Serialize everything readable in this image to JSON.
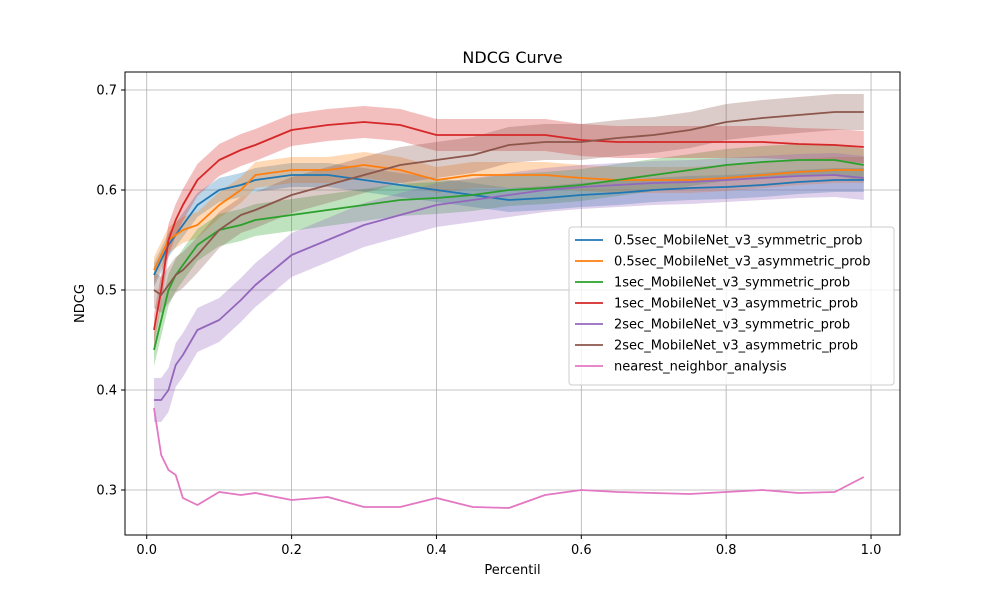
{
  "chart_data": {
    "type": "line",
    "title": "NDCG Curve",
    "xlabel": "Percentil",
    "ylabel": "NDCG",
    "xlim": [
      -0.03,
      1.04
    ],
    "ylim": [
      0.255,
      0.718
    ],
    "x_ticks": [
      0.0,
      0.2,
      0.4,
      0.6,
      0.8,
      1.0
    ],
    "x_tick_labels": [
      "0.0",
      "0.2",
      "0.4",
      "0.6",
      "0.8",
      "1.0"
    ],
    "y_ticks": [
      0.3,
      0.4,
      0.5,
      0.6,
      0.7
    ],
    "y_tick_labels": [
      "0.3",
      "0.4",
      "0.5",
      "0.6",
      "0.7"
    ],
    "grid": true,
    "legend_position": "center-right",
    "x": [
      0.01,
      0.02,
      0.03,
      0.04,
      0.05,
      0.07,
      0.1,
      0.13,
      0.15,
      0.2,
      0.25,
      0.3,
      0.35,
      0.4,
      0.45,
      0.5,
      0.55,
      0.6,
      0.65,
      0.7,
      0.75,
      0.8,
      0.85,
      0.9,
      0.95,
      0.99
    ],
    "series": [
      {
        "name": "0.5sec_MobileNet_v3_symmetric_prob",
        "color": "#1f77b4",
        "band": 0.012,
        "values": [
          0.515,
          0.53,
          0.545,
          0.555,
          0.565,
          0.585,
          0.6,
          0.605,
          0.61,
          0.615,
          0.615,
          0.61,
          0.605,
          0.6,
          0.595,
          0.59,
          0.592,
          0.595,
          0.597,
          0.6,
          0.602,
          0.603,
          0.605,
          0.608,
          0.61,
          0.61
        ]
      },
      {
        "name": "0.5sec_MobileNet_v3_asymmetric_prob",
        "color": "#ff7f0e",
        "band": 0.013,
        "values": [
          0.52,
          0.535,
          0.55,
          0.555,
          0.56,
          0.565,
          0.585,
          0.6,
          0.615,
          0.62,
          0.62,
          0.625,
          0.62,
          0.61,
          0.615,
          0.615,
          0.615,
          0.612,
          0.61,
          0.61,
          0.61,
          0.612,
          0.615,
          0.618,
          0.62,
          0.62
        ]
      },
      {
        "name": "1sec_MobileNet_v3_symmetric_prob",
        "color": "#2ca02c",
        "band": 0.016,
        "values": [
          0.44,
          0.47,
          0.5,
          0.515,
          0.525,
          0.545,
          0.56,
          0.565,
          0.57,
          0.575,
          0.58,
          0.585,
          0.59,
          0.592,
          0.595,
          0.6,
          0.602,
          0.605,
          0.61,
          0.615,
          0.62,
          0.625,
          0.628,
          0.63,
          0.63,
          0.625
        ]
      },
      {
        "name": "1sec_MobileNet_v3_asymmetric_prob",
        "color": "#d62728",
        "band": 0.016,
        "values": [
          0.46,
          0.5,
          0.55,
          0.57,
          0.585,
          0.61,
          0.63,
          0.64,
          0.645,
          0.66,
          0.665,
          0.668,
          0.665,
          0.655,
          0.655,
          0.655,
          0.655,
          0.65,
          0.648,
          0.648,
          0.648,
          0.648,
          0.648,
          0.646,
          0.645,
          0.643
        ]
      },
      {
        "name": "2sec_MobileNet_v3_symmetric_prob",
        "color": "#9467bd",
        "band": 0.022,
        "values": [
          0.39,
          0.39,
          0.4,
          0.425,
          0.435,
          0.46,
          0.47,
          0.49,
          0.505,
          0.535,
          0.55,
          0.565,
          0.575,
          0.585,
          0.59,
          0.595,
          0.6,
          0.603,
          0.605,
          0.607,
          0.608,
          0.61,
          0.612,
          0.614,
          0.615,
          0.612
        ]
      },
      {
        "name": "2sec_MobileNet_v3_asymmetric_prob",
        "color": "#8c564b",
        "band": 0.018,
        "values": [
          0.5,
          0.495,
          0.505,
          0.515,
          0.52,
          0.535,
          0.56,
          0.575,
          0.58,
          0.595,
          0.605,
          0.615,
          0.625,
          0.63,
          0.635,
          0.645,
          0.648,
          0.648,
          0.652,
          0.655,
          0.66,
          0.668,
          0.672,
          0.675,
          0.678,
          0.678
        ]
      },
      {
        "name": "nearest_neighbor_analysis",
        "color": "#e377c2",
        "band": 0,
        "values": [
          0.382,
          0.335,
          0.32,
          0.315,
          0.292,
          0.285,
          0.298,
          0.295,
          0.297,
          0.29,
          0.293,
          0.283,
          0.283,
          0.292,
          0.283,
          0.282,
          0.295,
          0.3,
          0.298,
          0.297,
          0.296,
          0.298,
          0.3,
          0.297,
          0.298,
          0.313
        ]
      }
    ]
  }
}
